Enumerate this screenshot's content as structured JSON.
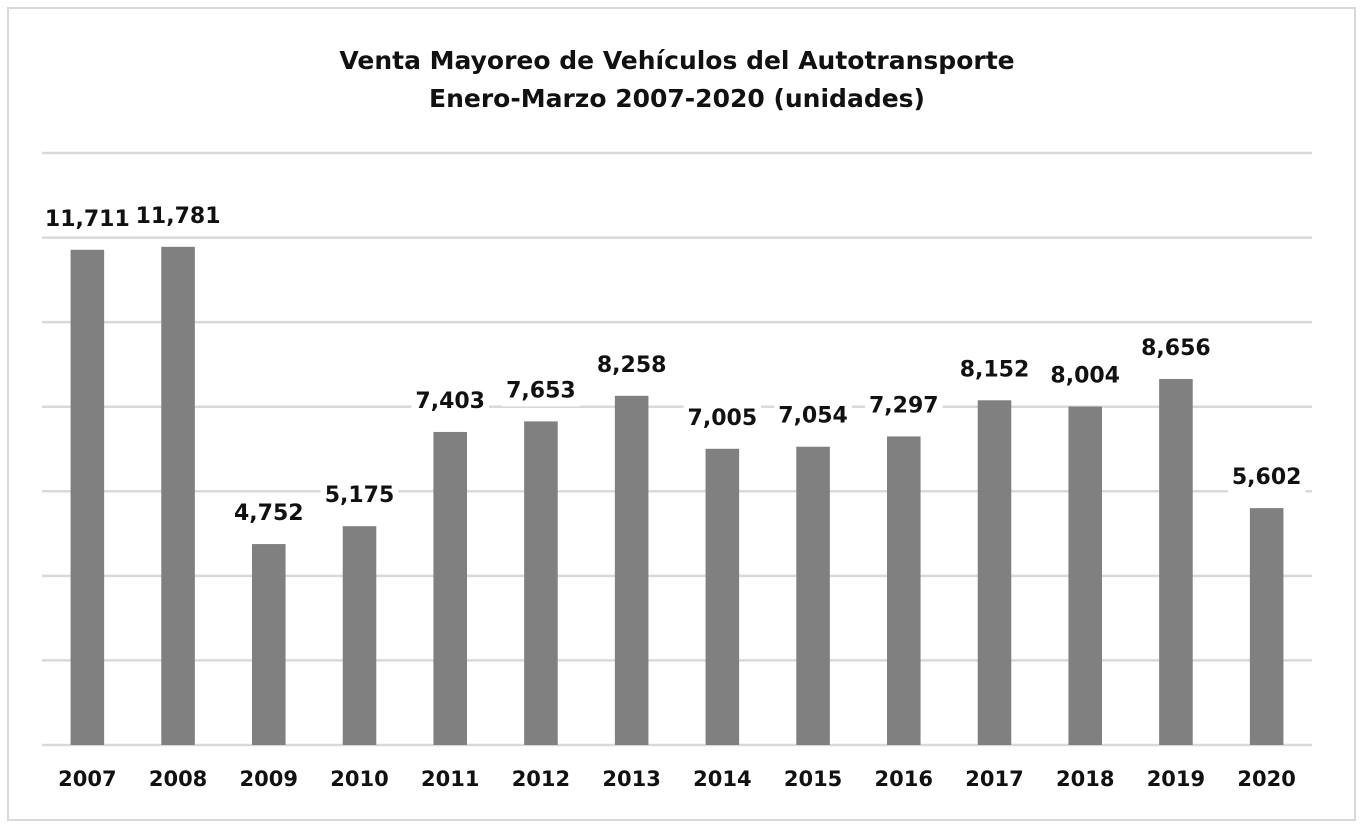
{
  "chart_data": {
    "type": "bar",
    "title": "Venta Mayoreo de Vehículos del Autotransporte",
    "subtitle": "Enero-Marzo 2007-2020 (unidades)",
    "categories": [
      "2007",
      "2008",
      "2009",
      "2010",
      "2011",
      "2012",
      "2013",
      "2014",
      "2015",
      "2016",
      "2017",
      "2018",
      "2019",
      "2020"
    ],
    "values": [
      11711,
      11781,
      4752,
      5175,
      7403,
      7653,
      8258,
      7005,
      7054,
      7297,
      8152,
      8004,
      8656,
      5602
    ],
    "value_labels": [
      "11,711",
      "11,781",
      "4,752",
      "5,175",
      "7,403",
      "7,653",
      "8,258",
      "7,005",
      "7,054",
      "7,297",
      "8,152",
      "8,004",
      "8,656",
      "5,602"
    ],
    "color": "#808080",
    "ylim": [
      0,
      14000
    ],
    "yticks": [
      0,
      2000,
      4000,
      6000,
      8000,
      10000,
      12000,
      14000
    ],
    "grid": true
  }
}
